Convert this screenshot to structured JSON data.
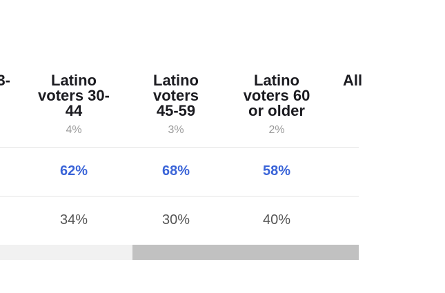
{
  "table": {
    "columns": [
      {
        "header": "3-",
        "share": "",
        "row1": "",
        "row2": ""
      },
      {
        "header": "Latino\nvoters 30-\n44",
        "share": "4%",
        "row1": "62%",
        "row2": "34%"
      },
      {
        "header": "Latino\nvoters\n45-59",
        "share": "3%",
        "row1": "68%",
        "row2": "30%"
      },
      {
        "header": "Latino\nvoters 60\nor older",
        "share": "2%",
        "row1": "58%",
        "row2": "40%"
      },
      {
        "header": "All",
        "share": "",
        "row1": "",
        "row2": ""
      }
    ]
  },
  "colors": {
    "row1_accent": "#3a64d8",
    "share_gray": "#9a9a9a",
    "row2_gray": "#555555",
    "scroll_track": "#f1f1f1",
    "scroll_thumb": "#c1c1c1"
  }
}
